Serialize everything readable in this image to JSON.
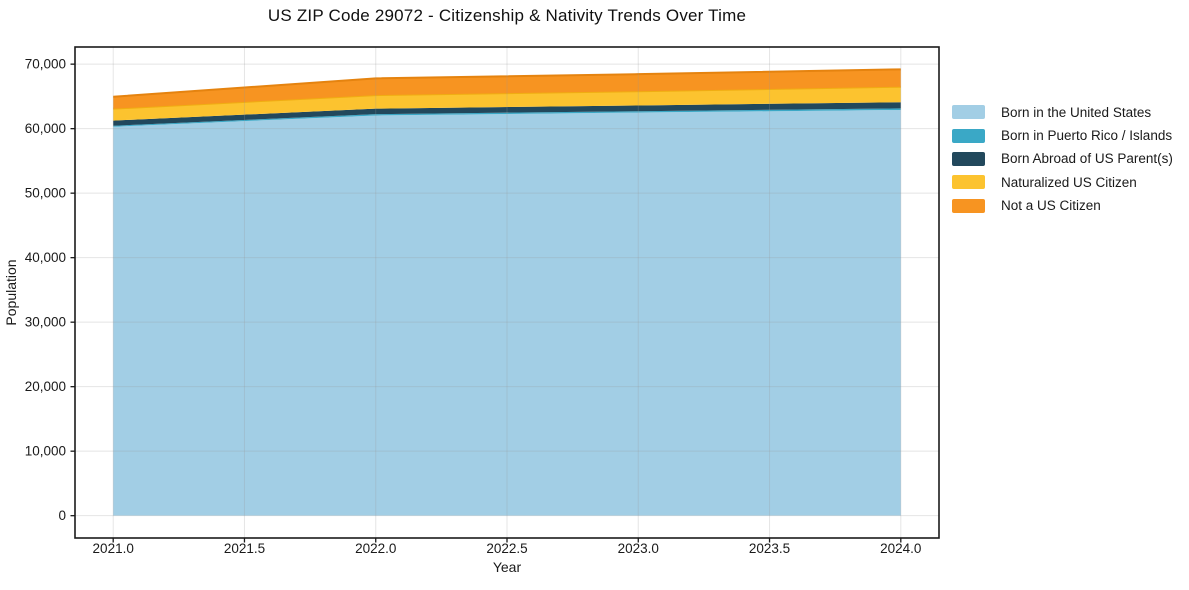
{
  "chart_data": {
    "type": "area",
    "stacked": true,
    "title": "US ZIP Code 29072 - Citizenship & Nativity Trends Over Time",
    "xlabel": "Year",
    "ylabel": "Population",
    "x": [
      2021,
      2022,
      2023,
      2024
    ],
    "series": [
      {
        "name": "Born in the United States",
        "color": "#a2cee5",
        "values": [
          60300,
          62050,
          62500,
          62900
        ]
      },
      {
        "name": "Born in Puerto Rico / Islands",
        "color": "#3aa8c6",
        "values": [
          150,
          200,
          200,
          250
        ]
      },
      {
        "name": "Born Abroad of US Parent(s)",
        "color": "#22485c",
        "values": [
          800,
          850,
          900,
          950
        ]
      },
      {
        "name": "Naturalized US Citizen",
        "color": "#fcc32f",
        "edge": "#f0ad12",
        "values": [
          1850,
          2100,
          2200,
          2400
        ]
      },
      {
        "name": "Not a US Citizen",
        "color": "#f79421",
        "edge": "#e5830f",
        "values": [
          1850,
          2600,
          2650,
          2700
        ]
      }
    ],
    "xlim": [
      2020.8545,
      2024.1455
    ],
    "ylim": [
      -3460,
      72660
    ],
    "xticks": {
      "values": [
        2021.0,
        2021.5,
        2022.0,
        2022.5,
        2023.0,
        2023.5,
        2024.0
      ],
      "labels": [
        "2021.0",
        "2021.5",
        "2022.0",
        "2022.5",
        "2023.0",
        "2023.5",
        "2024.0"
      ]
    },
    "yticks": {
      "values": [
        0,
        10000,
        20000,
        30000,
        40000,
        50000,
        60000,
        70000
      ],
      "labels": [
        "0",
        "10,000",
        "20,000",
        "30,000",
        "40,000",
        "50,000",
        "60,000",
        "70,000"
      ]
    },
    "grid": true,
    "legend_position": "right",
    "colors": {
      "spine": "#1a1a1a",
      "grid": "rgba(150,150,150,0.25)",
      "text": "#1a1a1a"
    }
  }
}
